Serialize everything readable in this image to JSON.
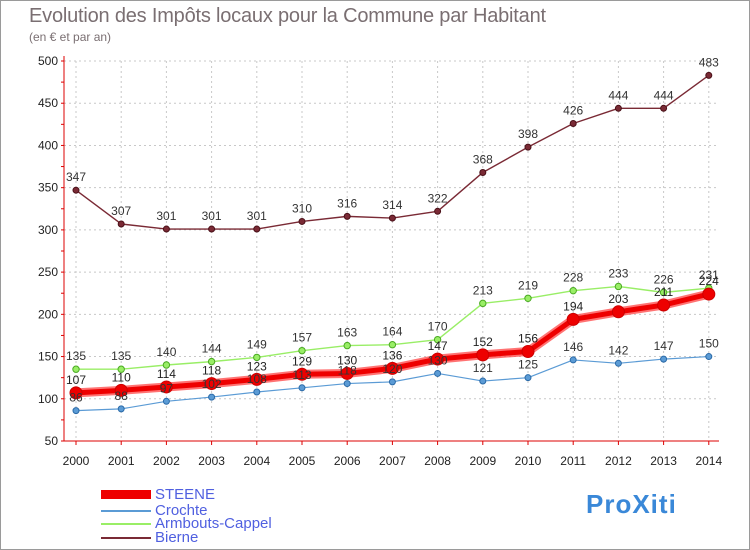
{
  "header": {
    "title": "Evolution des Impôts locaux pour la Commune par Habitant",
    "subtitle": "(en € et par an)"
  },
  "logo": {
    "text": "ProXiti"
  },
  "chart_data": {
    "type": "line",
    "title": "Evolution des Impôts locaux pour la Commune par Habitant",
    "subtitle": "(en € et par an)",
    "xlabel": "",
    "ylabel": "(en € et par an)",
    "x": [
      "2000",
      "2001",
      "2002",
      "2003",
      "2004",
      "2005",
      "2006",
      "2007",
      "2008",
      "2009",
      "2010",
      "2011",
      "2012",
      "2013",
      "2014"
    ],
    "ylim": [
      50,
      500
    ],
    "yticks": [
      50,
      100,
      150,
      200,
      250,
      300,
      350,
      400,
      450,
      500
    ],
    "legend_position": "bottom-left",
    "series": [
      {
        "name": "STEENE",
        "color": "#ee0000",
        "values": [
          107,
          110,
          114,
          118,
          123,
          129,
          130,
          136,
          147,
          152,
          156,
          194,
          203,
          211,
          224
        ]
      },
      {
        "name": "Crochte",
        "color": "#5b9bd5",
        "values": [
          86,
          88,
          97,
          102,
          108,
          113,
          118,
          120,
          130,
          121,
          125,
          146,
          142,
          147,
          150
        ]
      },
      {
        "name": "Armbouts-Cappel",
        "color": "#99ee66",
        "values": [
          135,
          135,
          140,
          144,
          149,
          157,
          163,
          164,
          170,
          213,
          219,
          228,
          233,
          226,
          231
        ]
      },
      {
        "name": "Bierne",
        "color": "#7a2a35",
        "values": [
          347,
          307,
          301,
          301,
          301,
          310,
          316,
          314,
          322,
          368,
          398,
          426,
          444,
          444,
          483
        ]
      }
    ]
  }
}
